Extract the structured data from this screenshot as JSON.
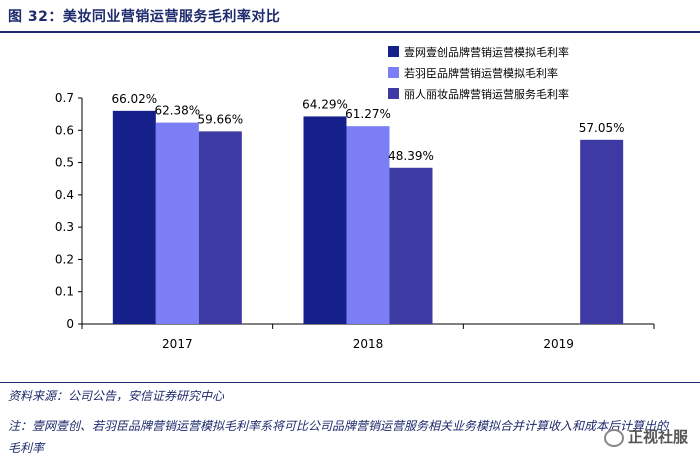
{
  "figure": {
    "title": "图 32：美妆同业营销运营服务毛利率对比",
    "source": "资料来源：公司公告，安信证券研究中心",
    "note": "注：壹网壹创、若羽臣品牌营销运营模拟毛利率系将可比公司品牌营销运营服务相关业务模拟合并计算收入和成本后计算出的毛利率",
    "watermark": "正视社服"
  },
  "colors": {
    "series1": "#15208b",
    "series2": "#7b7ef5",
    "series3": "#3e3aa4",
    "title": "#1d2a6b"
  },
  "chart_data": {
    "type": "bar",
    "categories": [
      "2017",
      "2018",
      "2019"
    ],
    "series": [
      {
        "name": "壹网壹创品牌营销运营模拟毛利率",
        "values": [
          0.6602,
          0.6429,
          null
        ],
        "labels": [
          "66.02%",
          "64.29%",
          ""
        ]
      },
      {
        "name": "若羽臣品牌营销运营模拟毛利率",
        "values": [
          0.6238,
          0.6127,
          null
        ],
        "labels": [
          "62.38%",
          "61.27%",
          ""
        ]
      },
      {
        "name": "丽人丽妆品牌营销运营服务毛利率",
        "values": [
          0.5966,
          0.4839,
          0.5705
        ],
        "labels": [
          "59.66%",
          "48.39%",
          "57.05%"
        ]
      }
    ],
    "ylim": [
      0,
      0.7
    ],
    "yticks": [
      "0",
      "0.1",
      "0.2",
      "0.3",
      "0.4",
      "0.5",
      "0.6",
      "0.7"
    ],
    "legend_position": "top-right",
    "grid": false
  }
}
